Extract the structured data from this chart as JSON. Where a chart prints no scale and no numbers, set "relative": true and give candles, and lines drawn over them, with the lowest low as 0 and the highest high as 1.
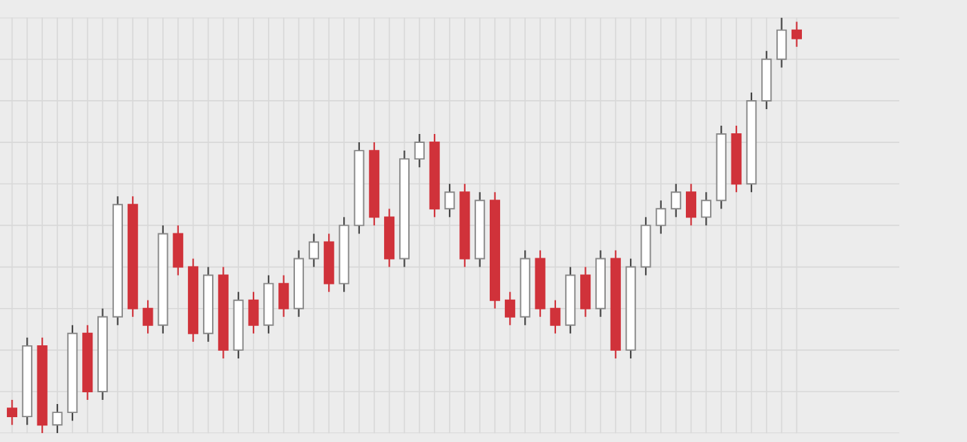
{
  "chart_data": {
    "type": "candlestick",
    "relative": true,
    "grid": true,
    "categories": [
      null,
      null,
      null,
      null,
      null,
      null,
      null,
      null,
      null,
      null,
      null,
      null,
      null,
      null,
      null,
      null,
      null,
      null,
      null,
      null,
      null,
      null,
      null,
      null,
      null,
      null,
      null,
      null,
      null,
      null,
      null,
      null,
      null,
      null,
      null,
      null,
      null,
      null,
      null,
      null,
      null,
      null,
      null,
      null,
      null,
      null,
      null,
      null,
      null,
      null,
      null,
      null,
      null
    ],
    "ohlc": [
      [
        0.06,
        0.08,
        0.02,
        0.04
      ],
      [
        0.04,
        0.23,
        0.02,
        0.21
      ],
      [
        0.21,
        0.23,
        0,
        0.02
      ],
      [
        0.02,
        0.07,
        0,
        0.05
      ],
      [
        0.05,
        0.26,
        0.03,
        0.24
      ],
      [
        0.24,
        0.26,
        0.08,
        0.1
      ],
      [
        0.1,
        0.3,
        0.08,
        0.28
      ],
      [
        0.28,
        0.57,
        0.26,
        0.55
      ],
      [
        0.55,
        0.57,
        0.28,
        0.3
      ],
      [
        0.3,
        0.32,
        0.24,
        0.26
      ],
      [
        0.26,
        0.5,
        0.24,
        0.48
      ],
      [
        0.48,
        0.5,
        0.38,
        0.4
      ],
      [
        0.4,
        0.42,
        0.22,
        0.24
      ],
      [
        0.24,
        0.4,
        0.22,
        0.38
      ],
      [
        0.38,
        0.4,
        0.18,
        0.2
      ],
      [
        0.2,
        0.34,
        0.18,
        0.32
      ],
      [
        0.32,
        0.34,
        0.24,
        0.26
      ],
      [
        0.26,
        0.38,
        0.24,
        0.36
      ],
      [
        0.36,
        0.38,
        0.28,
        0.3
      ],
      [
        0.3,
        0.44,
        0.28,
        0.42
      ],
      [
        0.42,
        0.48,
        0.4,
        0.46
      ],
      [
        0.46,
        0.48,
        0.34,
        0.36
      ],
      [
        0.36,
        0.52,
        0.34,
        0.5
      ],
      [
        0.5,
        0.7,
        0.48,
        0.68
      ],
      [
        0.68,
        0.7,
        0.5,
        0.52
      ],
      [
        0.52,
        0.54,
        0.4,
        0.42
      ],
      [
        0.42,
        0.68,
        0.4,
        0.66
      ],
      [
        0.66,
        0.72,
        0.64,
        0.7
      ],
      [
        0.7,
        0.72,
        0.52,
        0.54
      ],
      [
        0.54,
        0.6,
        0.52,
        0.58
      ],
      [
        0.58,
        0.6,
        0.4,
        0.42
      ],
      [
        0.42,
        0.58,
        0.4,
        0.56
      ],
      [
        0.56,
        0.58,
        0.3,
        0.32
      ],
      [
        0.32,
        0.34,
        0.26,
        0.28
      ],
      [
        0.28,
        0.44,
        0.26,
        0.42
      ],
      [
        0.42,
        0.44,
        0.28,
        0.3
      ],
      [
        0.3,
        0.32,
        0.24,
        0.26
      ],
      [
        0.26,
        0.4,
        0.24,
        0.38
      ],
      [
        0.38,
        0.4,
        0.28,
        0.3
      ],
      [
        0.3,
        0.44,
        0.28,
        0.42
      ],
      [
        0.42,
        0.44,
        0.18,
        0.2
      ],
      [
        0.2,
        0.42,
        0.18,
        0.4
      ],
      [
        0.4,
        0.52,
        0.38,
        0.5
      ],
      [
        0.5,
        0.56,
        0.48,
        0.54
      ],
      [
        0.54,
        0.6,
        0.52,
        0.58
      ],
      [
        0.58,
        0.6,
        0.5,
        0.52
      ],
      [
        0.52,
        0.58,
        0.5,
        0.56
      ],
      [
        0.56,
        0.74,
        0.54,
        0.72
      ],
      [
        0.72,
        0.74,
        0.58,
        0.6
      ],
      [
        0.6,
        0.82,
        0.58,
        0.8
      ],
      [
        0.8,
        0.92,
        0.78,
        0.9
      ],
      [
        0.9,
        1.0,
        0.88,
        0.97
      ],
      [
        0.97,
        0.99,
        0.93,
        0.95
      ]
    ],
    "colors": [
      "#d0323a",
      "#ffffff",
      "#d0323a",
      "#ffffff",
      "#ffffff",
      "#d0323a",
      "#ffffff",
      "#ffffff",
      "#d0323a",
      "#d0323a",
      "#ffffff",
      "#d0323a",
      "#d0323a",
      "#ffffff",
      "#d0323a",
      "#ffffff",
      "#d0323a",
      "#ffffff",
      "#d0323a",
      "#ffffff",
      "#ffffff",
      "#d0323a",
      "#ffffff",
      "#ffffff",
      "#d0323a",
      "#d0323a",
      "#ffffff",
      "#ffffff",
      "#d0323a",
      "#ffffff",
      "#d0323a",
      "#ffffff",
      "#d0323a",
      "#d0323a",
      "#ffffff",
      "#d0323a",
      "#d0323a",
      "#ffffff",
      "#d0323a",
      "#ffffff",
      "#d0323a",
      "#ffffff",
      "#ffffff",
      "#ffffff",
      "#ffffff",
      "#d0323a",
      "#ffffff",
      "#ffffff",
      "#d0323a",
      "#ffffff",
      "#ffffff",
      "#ffffff",
      "#d0323a"
    ]
  }
}
